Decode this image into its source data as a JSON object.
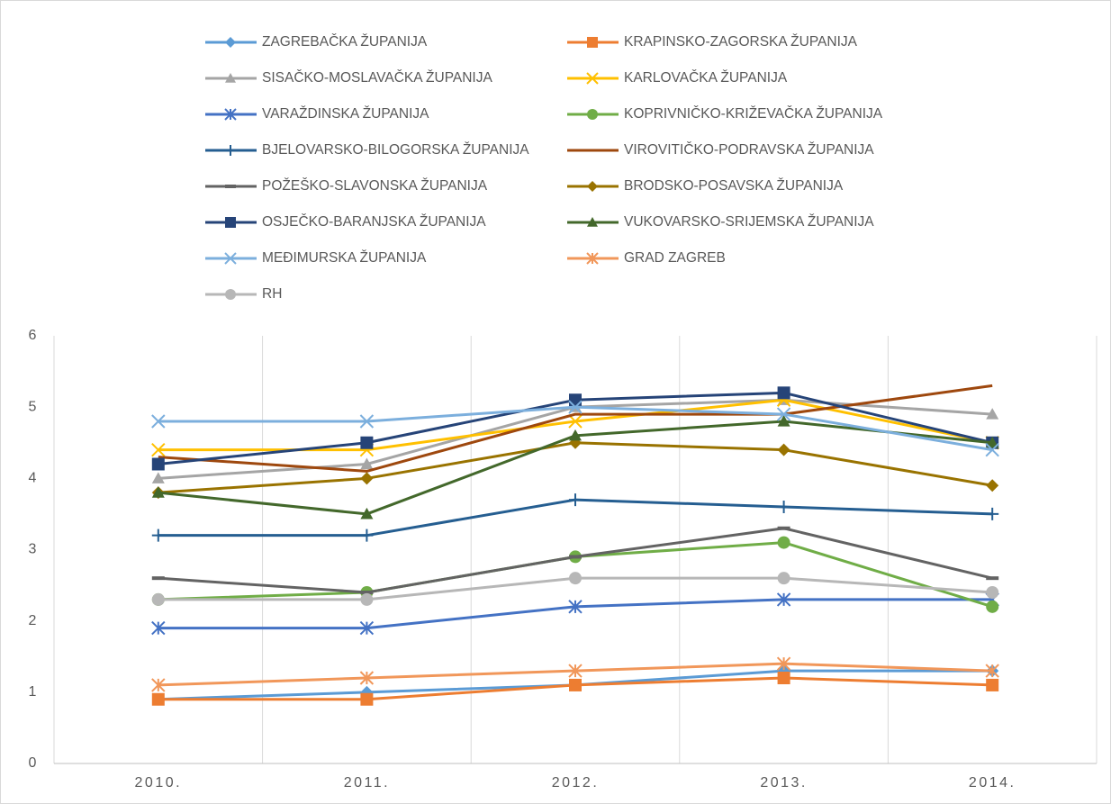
{
  "chart_data": {
    "type": "line",
    "categories": [
      "2010.",
      "2011.",
      "2012.",
      "2013.",
      "2014."
    ],
    "ylim": [
      0,
      6
    ],
    "yticks": [
      0,
      1,
      2,
      3,
      4,
      5,
      6
    ],
    "series": [
      {
        "name": "ZAGREBAČKA ŽUPANIJA",
        "color": "#5b9bd5",
        "marker": "diamond",
        "values": [
          0.9,
          1.0,
          1.1,
          1.3,
          1.3
        ]
      },
      {
        "name": "KRAPINSKO-ZAGORSKA ŽUPANIJA",
        "color": "#ed7d31",
        "marker": "square",
        "values": [
          0.9,
          0.9,
          1.1,
          1.2,
          1.1
        ]
      },
      {
        "name": "SISAČKO-MOSLAVAČKA ŽUPANIJA",
        "color": "#a5a5a5",
        "marker": "triangle",
        "values": [
          4.0,
          4.2,
          5.0,
          5.1,
          4.9
        ]
      },
      {
        "name": "KARLOVAČKA ŽUPANIJA",
        "color": "#ffc000",
        "marker": "x",
        "values": [
          4.4,
          4.4,
          4.8,
          5.1,
          4.5
        ]
      },
      {
        "name": "VARAŽDINSKA ŽUPANIJA",
        "color": "#4472c4",
        "marker": "star",
        "values": [
          1.9,
          1.9,
          2.2,
          2.3,
          2.3
        ]
      },
      {
        "name": "KOPRIVNIČKO-KRIŽEVAČKA ŽUPANIJA",
        "color": "#70ad47",
        "marker": "circle",
        "values": [
          2.3,
          2.4,
          2.9,
          3.1,
          2.2
        ]
      },
      {
        "name": "BJELOVARSKO-BILOGORSKA ŽUPANIJA",
        "color": "#255e91",
        "marker": "plus",
        "values": [
          3.2,
          3.2,
          3.7,
          3.6,
          3.5
        ]
      },
      {
        "name": "VIROVITIČKO-PODRAVSKA ŽUPANIJA",
        "color": "#9e480e",
        "marker": "none",
        "values": [
          4.3,
          4.1,
          4.9,
          4.9,
          5.3
        ]
      },
      {
        "name": "POŽEŠKO-SLAVONSKA ŽUPANIJA",
        "color": "#636363",
        "marker": "dash",
        "values": [
          2.6,
          2.4,
          2.9,
          3.3,
          2.6
        ]
      },
      {
        "name": "BRODSKO-POSAVSKA ŽUPANIJA",
        "color": "#997300",
        "marker": "diamond",
        "values": [
          3.8,
          4.0,
          4.5,
          4.4,
          3.9
        ]
      },
      {
        "name": "OSJEČKO-BARANJSKA ŽUPANIJA",
        "color": "#264478",
        "marker": "square",
        "values": [
          4.2,
          4.5,
          5.1,
          5.2,
          4.5
        ]
      },
      {
        "name": "VUKOVARSKO-SRIJEMSKA ŽUPANIJA",
        "color": "#43682b",
        "marker": "triangle",
        "values": [
          3.8,
          3.5,
          4.6,
          4.8,
          4.5
        ]
      },
      {
        "name": "MEĐIMURSKA ŽUPANIJA",
        "color": "#7cafdd",
        "marker": "x",
        "values": [
          4.8,
          4.8,
          5.0,
          4.9,
          4.4
        ]
      },
      {
        "name": "GRAD ZAGREB",
        "color": "#f1975a",
        "marker": "star",
        "values": [
          1.1,
          1.2,
          1.3,
          1.4,
          1.3
        ]
      },
      {
        "name": "RH",
        "color": "#b7b7b7",
        "marker": "circle",
        "values": [
          2.3,
          2.3,
          2.6,
          2.6,
          2.4
        ]
      }
    ]
  }
}
